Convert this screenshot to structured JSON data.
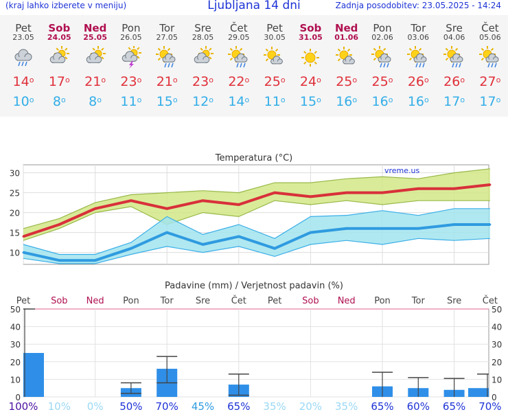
{
  "header": {
    "left_note": "(kraj lahko izberete v meniju)",
    "title": "Ljubljana 14 dni",
    "updated": "Zadnja posodobitev: 23.05.2025 - 14:24"
  },
  "days": [
    {
      "name": "Pet",
      "date": "23.05",
      "weekend": false,
      "icon": "rain-cloud-icon",
      "high": "14",
      "low": "10"
    },
    {
      "name": "Sob",
      "date": "24.05",
      "weekend": true,
      "icon": "partly-cloudy-icon",
      "high": "17",
      "low": "8"
    },
    {
      "name": "Ned",
      "date": "25.05",
      "weekend": true,
      "icon": "partly-cloudy-icon",
      "high": "21",
      "low": "8"
    },
    {
      "name": "Pon",
      "date": "26.05",
      "weekend": false,
      "icon": "thunderstorm-icon",
      "high": "23",
      "low": "11"
    },
    {
      "name": "Tor",
      "date": "27.05",
      "weekend": false,
      "icon": "sun-rain-icon",
      "high": "21",
      "low": "15"
    },
    {
      "name": "Sre",
      "date": "28.05",
      "weekend": false,
      "icon": "partly-cloudy-icon",
      "high": "23",
      "low": "12"
    },
    {
      "name": "Čet",
      "date": "29.05",
      "weekend": false,
      "icon": "sun-rain-icon",
      "high": "22",
      "low": "14"
    },
    {
      "name": "Pet",
      "date": "30.05",
      "weekend": false,
      "icon": "sun-cloud-icon",
      "high": "25",
      "low": "11"
    },
    {
      "name": "Sob",
      "date": "31.05",
      "weekend": true,
      "icon": "sun-icon",
      "high": "24",
      "low": "15"
    },
    {
      "name": "Ned",
      "date": "01.06",
      "weekend": true,
      "icon": "sun-cloud-icon",
      "high": "25",
      "low": "16"
    },
    {
      "name": "Pon",
      "date": "02.06",
      "weekend": false,
      "icon": "sun-rain-icon",
      "high": "25",
      "low": "16"
    },
    {
      "name": "Tor",
      "date": "03.06",
      "weekend": false,
      "icon": "sun-rain-icon",
      "high": "26",
      "low": "16"
    },
    {
      "name": "Sre",
      "date": "04.06",
      "weekend": false,
      "icon": "sun-rain-icon",
      "high": "26",
      "low": "17"
    },
    {
      "name": "Čet",
      "date": "05.06",
      "weekend": false,
      "icon": "sun-rain-icon",
      "high": "27",
      "low": "17"
    }
  ],
  "chart_data": [
    {
      "type": "line",
      "title": "Temperatura (°C)",
      "watermark": "vreme.us",
      "ylim": [
        7,
        32
      ],
      "yticks": [
        10,
        15,
        20,
        25,
        30
      ],
      "grid": true,
      "x": [
        "23.05",
        "24.05",
        "25.05",
        "26.05",
        "27.05",
        "28.05",
        "29.05",
        "30.05",
        "31.05",
        "01.06",
        "02.06",
        "03.06",
        "04.06",
        "05.06"
      ],
      "series": [
        {
          "role": "max",
          "color": "#d8303a",
          "values": [
            14,
            17,
            21,
            23,
            21,
            23,
            22,
            25,
            24,
            25,
            25,
            26,
            26,
            27
          ],
          "band_low": [
            13,
            16,
            20,
            21.5,
            17,
            20,
            19,
            23,
            22,
            23,
            22,
            23,
            23,
            23
          ],
          "band_high": [
            16,
            18.5,
            22.5,
            24.5,
            25,
            25.5,
            25,
            27.5,
            27.5,
            28.5,
            29,
            28.5,
            30,
            31
          ]
        },
        {
          "role": "min",
          "color": "#2f9be0",
          "values": [
            10,
            8,
            8,
            11,
            15,
            12,
            14,
            11,
            15,
            16,
            16,
            16,
            17,
            17
          ],
          "band_low": [
            8.5,
            7.2,
            7.2,
            9.5,
            11.5,
            10,
            11.5,
            9,
            12,
            13,
            12,
            13.5,
            13,
            13.5
          ],
          "band_high": [
            12,
            9.5,
            9.5,
            12.5,
            19,
            14.5,
            17,
            13.5,
            19,
            19.3,
            20.5,
            19.3,
            21,
            21
          ]
        }
      ]
    },
    {
      "type": "bar",
      "title": "Padavine (mm) / Verjetnost padavin (%)",
      "ylim": [
        0,
        50
      ],
      "yticks": [
        0,
        10,
        20,
        30,
        40,
        50
      ],
      "categories": [
        "Pet",
        "Sob",
        "Ned",
        "Pon",
        "Tor",
        "Sre",
        "Čet",
        "Pet",
        "Sob",
        "Ned",
        "Pon",
        "Tor",
        "Sre",
        "Čet"
      ],
      "weekend": [
        false,
        true,
        true,
        false,
        false,
        false,
        false,
        false,
        true,
        true,
        false,
        false,
        false,
        false
      ],
      "values": [
        25,
        0,
        0,
        5,
        16,
        0,
        7,
        0,
        0,
        0,
        6,
        5,
        4,
        5
      ],
      "error_low": [
        null,
        null,
        null,
        2,
        8,
        null,
        1,
        null,
        null,
        null,
        null,
        null,
        null,
        null
      ],
      "error_high": [
        50,
        null,
        null,
        8,
        23,
        null,
        13,
        null,
        null,
        null,
        14,
        11,
        10.5,
        13
      ],
      "probability": [
        "100%",
        "10%",
        "0%",
        "50%",
        "70%",
        "45%",
        "65%",
        "35%",
        "20%",
        "35%",
        "65%",
        "60%",
        "65%",
        "70%"
      ],
      "probability_color": [
        "#4a10a0",
        "#9ad8f5",
        "#9ad8f5",
        "#1d33d6",
        "#1d33d6",
        "#2f9be0",
        "#1d33d6",
        "#9ad8f5",
        "#9ad8f5",
        "#9ad8f5",
        "#1d33d6",
        "#1d33d6",
        "#1d33d6",
        "#1d33d6"
      ],
      "bar_color": "#2f8fe8"
    }
  ]
}
